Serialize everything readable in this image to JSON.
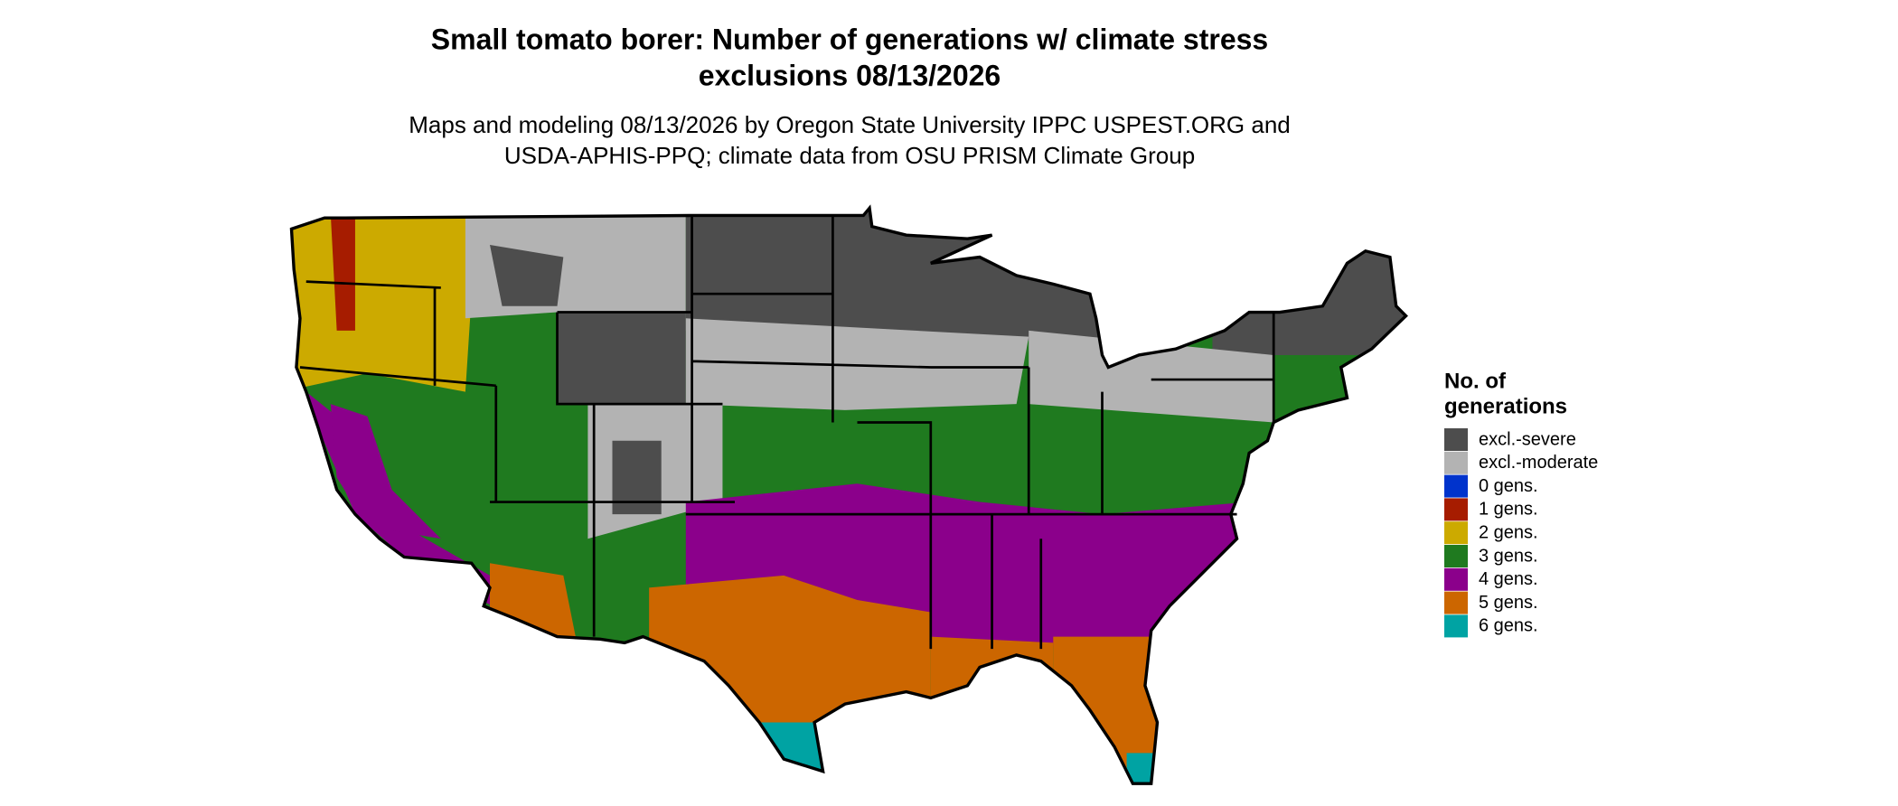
{
  "title_lines": [
    "Small tomato borer: Number of generations w/ climate stress",
    "exclusions 08/13/2026"
  ],
  "subtitle_lines": [
    "Maps and modeling 08/13/2026 by Oregon State University IPPC USPEST.ORG and",
    "USDA-APHIS-PPQ; climate data from OSU PRISM Climate Group"
  ],
  "legend": {
    "title_lines": [
      "No. of",
      "generations"
    ],
    "items": [
      {
        "label": "excl.-severe",
        "color": "#4d4d4d"
      },
      {
        "label": "excl.-moderate",
        "color": "#b3b3b3"
      },
      {
        "label": "0 gens.",
        "color": "#0033cc"
      },
      {
        "label": "1 gens.",
        "color": "#a61c00"
      },
      {
        "label": "2 gens.",
        "color": "#ccaa00"
      },
      {
        "label": "3 gens.",
        "color": "#1f7a1f"
      },
      {
        "label": "4 gens.",
        "color": "#8b008b"
      },
      {
        "label": "5 gens.",
        "color": "#cc6600"
      },
      {
        "label": "6 gens.",
        "color": "#00a3a3"
      }
    ]
  }
}
